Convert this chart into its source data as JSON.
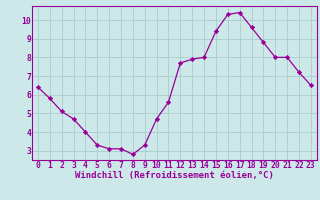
{
  "x": [
    0,
    1,
    2,
    3,
    4,
    5,
    6,
    7,
    8,
    9,
    10,
    11,
    12,
    13,
    14,
    15,
    16,
    17,
    18,
    19,
    20,
    21,
    22,
    23
  ],
  "y": [
    6.4,
    5.8,
    5.1,
    4.7,
    4.0,
    3.3,
    3.1,
    3.1,
    2.8,
    3.3,
    4.7,
    5.6,
    7.7,
    7.9,
    8.0,
    9.4,
    10.3,
    10.4,
    9.6,
    8.8,
    8.0,
    8.0,
    7.2,
    6.5
  ],
  "line_color": "#990099",
  "marker": "D",
  "marker_size": 2.2,
  "bg_color": "#cce8e8",
  "grid_color": "#aacccc",
  "axis_label_color": "#990099",
  "tick_color": "#990099",
  "xlabel": "Windchill (Refroidissement éolien,°C)",
  "xlim": [
    -0.5,
    23.5
  ],
  "ylim": [
    2.5,
    10.75
  ],
  "yticks": [
    3,
    4,
    5,
    6,
    7,
    8,
    9,
    10
  ],
  "xticks": [
    0,
    1,
    2,
    3,
    4,
    5,
    6,
    7,
    8,
    9,
    10,
    11,
    12,
    13,
    14,
    15,
    16,
    17,
    18,
    19,
    20,
    21,
    22,
    23
  ],
  "spine_color": "#990099",
  "font_size_label": 6.5,
  "font_size_tick": 5.8
}
